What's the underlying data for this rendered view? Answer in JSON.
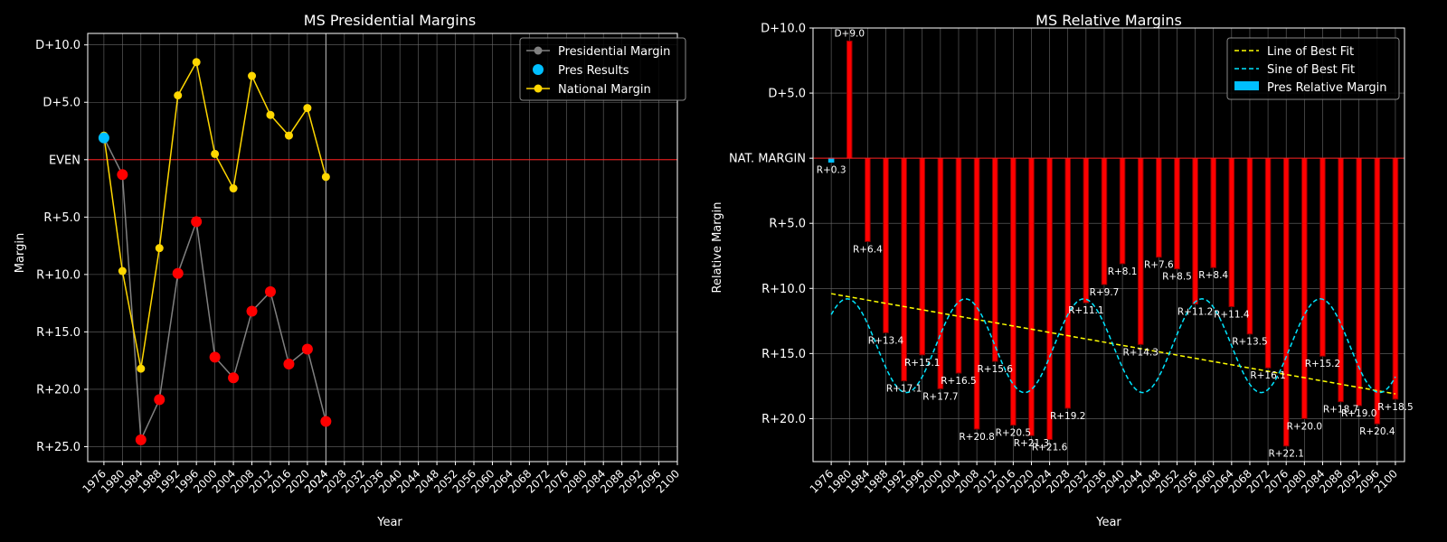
{
  "colors": {
    "background": "#000000",
    "grid": "#6b6b6b",
    "pres_line": "#808080",
    "pres_point": "#ff0000",
    "pres_result": "#00bfff",
    "national": "#ffd700",
    "even_line": "#ff2020",
    "bar_fill": "#ff0000",
    "bar_edge": "#8b0000",
    "bar_dem": "#00bfff",
    "fit_line": "#ffff00",
    "sine_line": "#00e5ff"
  },
  "chart_data": [
    {
      "type": "line",
      "title": "MS Presidential Margins",
      "xlabel": "Year",
      "ylabel": "Margin",
      "x_ticks": [
        "1976",
        "1980",
        "1984",
        "1988",
        "1992",
        "1996",
        "2000",
        "2004",
        "2008",
        "2012",
        "2016",
        "2020",
        "2024",
        "2024",
        "2028",
        "2032",
        "2036",
        "2040",
        "2044",
        "2048",
        "2052",
        "2056",
        "2060",
        "2064",
        "2068",
        "2072",
        "2076",
        "2080",
        "2084",
        "2088",
        "2092",
        "2096",
        "2100"
      ],
      "x_tick_values": [
        1976,
        1980,
        1984,
        1988,
        1992,
        1996,
        2000,
        2004,
        2008,
        2012,
        2016,
        2020,
        2024,
        2024,
        2028,
        2032,
        2036,
        2040,
        2044,
        2048,
        2052,
        2056,
        2060,
        2064,
        2068,
        2072,
        2076,
        2080,
        2084,
        2088,
        2092,
        2096,
        2100
      ],
      "y_ticks": [
        "D+10.0",
        "D+5.0",
        "EVEN",
        "R+5.0",
        "R+10.0",
        "R+15.0",
        "R+20.0",
        "R+25.0"
      ],
      "y_tick_values": [
        10,
        5,
        0,
        -5,
        -10,
        -15,
        -20,
        -25
      ],
      "xlim": [
        1972.5,
        2100
      ],
      "ylim": [
        -26.3,
        11.0
      ],
      "grid": true,
      "legend_position": "top-right",
      "legend": [
        "Presidential Margin",
        "Pres Results",
        "National Margin"
      ],
      "reference_line_y": 0,
      "highlight_x": 2024,
      "series": [
        {
          "name": "Presidential Margin",
          "x": [
            1976,
            1980,
            1984,
            1988,
            1992,
            1996,
            2000,
            2004,
            2008,
            2012,
            2016,
            2020,
            2024
          ],
          "values": [
            1.9,
            -1.3,
            -24.4,
            -20.9,
            -9.9,
            -5.4,
            -17.2,
            -19.0,
            -13.2,
            -11.5,
            -17.8,
            -16.5,
            -22.8
          ]
        },
        {
          "name": "National Margin",
          "x": [
            1976,
            1980,
            1984,
            1988,
            1992,
            1996,
            2000,
            2004,
            2008,
            2012,
            2016,
            2020,
            2024
          ],
          "values": [
            2.1,
            -9.7,
            -18.2,
            -7.7,
            5.6,
            8.5,
            0.5,
            -2.5,
            7.3,
            3.9,
            2.1,
            4.5,
            -1.5
          ]
        }
      ],
      "pres_results_dem_x": [
        1976
      ]
    },
    {
      "type": "bar",
      "title": "MS Relative Margins",
      "xlabel": "Year",
      "ylabel": "Relative Margin",
      "x_ticks": [
        "1976",
        "1980",
        "1984",
        "1988",
        "1992",
        "1996",
        "2000",
        "2004",
        "2008",
        "2012",
        "2016",
        "2020",
        "2024",
        "2028",
        "2032",
        "2036",
        "2040",
        "2044",
        "2048",
        "2052",
        "2056",
        "2060",
        "2064",
        "2068",
        "2072",
        "2076",
        "2080",
        "2084",
        "2088",
        "2092",
        "2096",
        "2100"
      ],
      "y_ticks": [
        "D+10.0",
        "D+5.0",
        "NAT. MARGIN",
        "R+5.0",
        "R+10.0",
        "R+15.0",
        "R+20.0"
      ],
      "y_tick_values": [
        10,
        5,
        0,
        -5,
        -10,
        -15,
        -20
      ],
      "xlim": [
        1972,
        2102
      ],
      "ylim": [
        -23.3,
        10.0
      ],
      "grid": true,
      "legend_position": "top-right",
      "legend": [
        "Line of Best Fit",
        "Sine of Best Fit",
        "Pres Relative Margin"
      ],
      "reference_line_y": 0,
      "x": [
        1976,
        1980,
        1984,
        1988,
        1992,
        1996,
        2000,
        2004,
        2008,
        2012,
        2016,
        2020,
        2024,
        2028,
        2032,
        2036,
        2040,
        2044,
        2048,
        2052,
        2056,
        2060,
        2064,
        2068,
        2072,
        2076,
        2080,
        2084,
        2088,
        2092,
        2096,
        2100
      ],
      "values": [
        -0.3,
        9.0,
        -6.4,
        -13.4,
        -17.1,
        -15.1,
        -17.7,
        -16.5,
        -20.8,
        -15.6,
        -20.5,
        -21.3,
        -21.6,
        -19.2,
        -11.1,
        -9.7,
        -8.1,
        -14.3,
        -7.6,
        -8.5,
        -11.2,
        -8.4,
        -11.4,
        -13.5,
        -16.1,
        -22.1,
        -20.0,
        -15.2,
        -18.7,
        -19.0,
        -20.4,
        -18.5
      ],
      "labels": [
        "R+0.3",
        "D+9.0",
        "R+6.4",
        "R+13.4",
        "R+17.1",
        "R+15.1",
        "R+17.7",
        "R+16.5",
        "R+20.8",
        "R+15.6",
        "R+20.5",
        "R+21.3",
        "R+21.6",
        "R+19.2",
        "R+11.1",
        "R+9.7",
        "R+8.1",
        "R+14.3",
        "R+7.6",
        "R+8.5",
        "R+11.2",
        "R+8.4",
        "R+11.4",
        "R+13.5",
        "R+16.1",
        "R+22.1",
        "R+20.0",
        "R+15.2",
        "R+18.7",
        "R+19.0",
        "R+20.4",
        "R+18.5"
      ],
      "label_pos": [
        "below",
        "above",
        "below",
        "below",
        "below",
        "below",
        "below",
        "below",
        "below",
        "below",
        "below",
        "below",
        "below",
        "below",
        "below",
        "below",
        "below",
        "below",
        "below",
        "below",
        "below",
        "below",
        "below",
        "below",
        "below",
        "below",
        "below",
        "below",
        "below",
        "below",
        "below",
        "below"
      ],
      "fit_line": {
        "x": [
          1976,
          2100
        ],
        "y": [
          -10.4,
          -18.1
        ]
      },
      "sine_fit": {
        "offset": -14.4,
        "amplitude": 3.6,
        "period": 26,
        "peak_x": 1979.5,
        "x_range": [
          1976,
          2100
        ]
      }
    }
  ]
}
